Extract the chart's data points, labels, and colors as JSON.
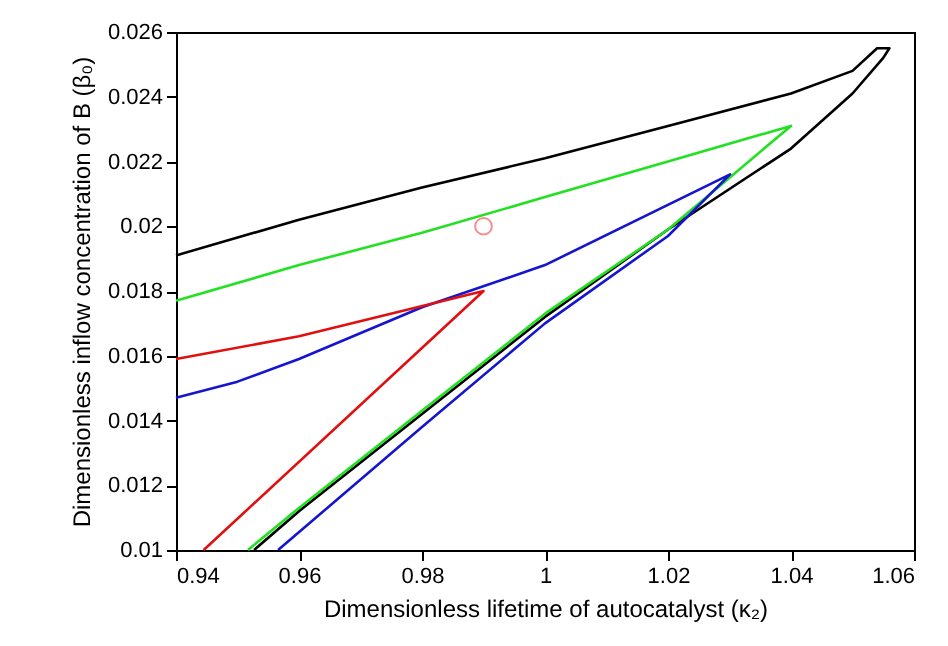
{
  "chart_data": {
    "type": "line",
    "xlabel": "Dimensionless lifetime of autocatalyst (κ₂)",
    "ylabel": "Dimensionless inflow concentration of B (β₀)",
    "xlim": [
      0.94,
      1.06
    ],
    "ylim": [
      0.01,
      0.026
    ],
    "xticks": [
      0.94,
      0.96,
      0.98,
      1,
      1.02,
      1.04,
      1.06
    ],
    "yticks": [
      0.01,
      0.012,
      0.014,
      0.016,
      0.018,
      0.02,
      0.022,
      0.024,
      0.026
    ],
    "series": [
      {
        "color": "#000000",
        "x": [
          0.94,
          0.96,
          0.98,
          1.0,
          1.02,
          1.04,
          1.05,
          1.054,
          1.056,
          1.055,
          1.05,
          1.04,
          1.02,
          1.0,
          0.98,
          0.96,
          0.9527
        ],
        "values": [
          0.0191,
          0.0202,
          0.0212,
          0.0221,
          0.0231,
          0.0241,
          0.0248,
          0.0255,
          0.0255,
          0.0252,
          0.0241,
          0.0224,
          0.0199,
          0.0172,
          0.0142,
          0.0112,
          0.01
        ]
      },
      {
        "color": "#22e022",
        "x": [
          0.94,
          0.96,
          0.98,
          1.0,
          1.02,
          1.04,
          1.03,
          1.02,
          1.0,
          0.98,
          0.96,
          0.9517
        ],
        "values": [
          0.0177,
          0.0188,
          0.0198,
          0.0209,
          0.022,
          0.0231,
          0.0215,
          0.0199,
          0.0173,
          0.0143,
          0.0113,
          0.01
        ]
      },
      {
        "color": "#1515d0",
        "x": [
          0.94,
          0.95,
          0.96,
          0.98,
          1.0,
          1.0301,
          1.02,
          1.0,
          0.98,
          0.9566
        ],
        "values": [
          0.0147,
          0.0152,
          0.0159,
          0.0175,
          0.0188,
          0.0216,
          0.0197,
          0.017,
          0.0138,
          0.01
        ]
      },
      {
        "color": "#e01010",
        "x": [
          0.94,
          0.96,
          0.99,
          0.9445
        ],
        "values": [
          0.0159,
          0.0166,
          0.018,
          0.01
        ]
      },
      {
        "type": "scatter",
        "marker": "circle",
        "color": "#f06060",
        "x": [
          0.99
        ],
        "values": [
          0.02
        ]
      }
    ]
  }
}
